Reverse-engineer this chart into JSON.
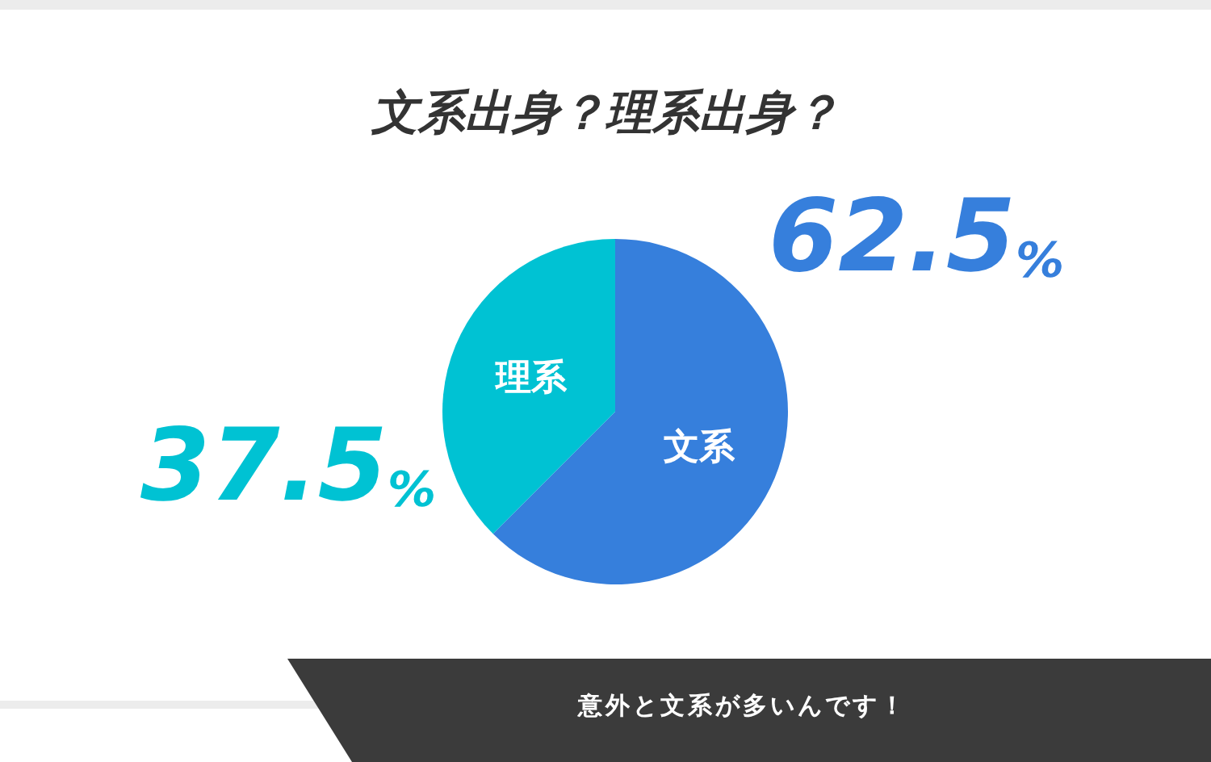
{
  "chart_data": {
    "type": "pie",
    "title": "文系出身？理系出身？",
    "categories": [
      "文系",
      "理系"
    ],
    "values": [
      62.5,
      37.5
    ],
    "colors": [
      "#367fdc",
      "#00c2d3"
    ],
    "value_labels": [
      "62.5%",
      "37.5%"
    ],
    "annotations": [
      "意外と文系が多いんです！"
    ],
    "legend": false
  }
}
